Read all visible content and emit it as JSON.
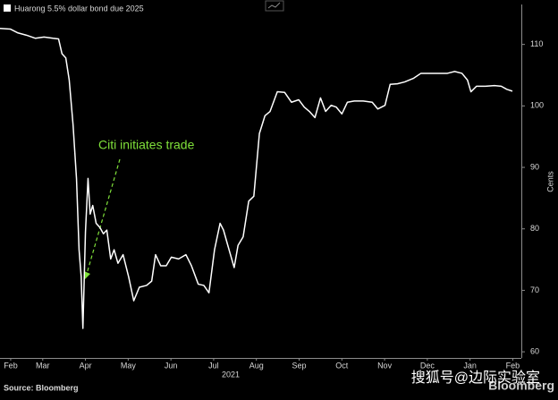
{
  "chart_data": {
    "type": "line",
    "series": [
      {
        "name": "Huarong 5.5% dollar bond due 2025",
        "color": "#ffffff",
        "x": [
          0,
          0.24,
          0.41,
          0.62,
          0.83,
          1.03,
          1.24,
          1.37,
          1.45,
          1.54,
          1.62,
          1.71,
          1.79,
          1.85,
          1.9,
          1.94,
          2.0,
          2.06,
          2.11,
          2.17,
          2.25,
          2.34,
          2.42,
          2.5,
          2.59,
          2.67,
          2.76,
          2.88,
          3.01,
          3.13,
          3.26,
          3.43,
          3.55,
          3.64,
          3.76,
          3.89,
          4.01,
          4.18,
          4.35,
          4.48,
          4.64,
          4.77,
          4.89,
          5.02,
          5.15,
          5.23,
          5.36,
          5.48,
          5.57,
          5.69,
          5.82,
          5.94,
          6.07,
          6.2,
          6.32,
          6.49,
          6.66,
          6.82,
          6.99,
          7.12,
          7.24,
          7.37,
          7.5,
          7.62,
          7.75,
          7.87,
          8.0,
          8.13,
          8.29,
          8.5,
          8.71,
          8.84,
          9.01,
          9.13,
          9.3,
          9.47,
          9.68,
          9.85,
          10.06,
          10.26,
          10.47,
          10.64,
          10.81,
          10.94,
          11.02,
          11.15,
          11.36,
          11.57,
          11.73,
          11.86,
          11.99
        ],
        "values": [
          112.6,
          112.5,
          111.9,
          111.5,
          111.0,
          111.2,
          111.0,
          110.9,
          108.5,
          107.8,
          104.2,
          96.9,
          88.2,
          76.6,
          72.2,
          63.8,
          79.5,
          88.2,
          82.4,
          83.8,
          80.9,
          80.2,
          79.2,
          79.8,
          75.1,
          76.6,
          74.4,
          75.8,
          72.2,
          68.3,
          70.5,
          70.8,
          71.5,
          75.8,
          74.0,
          74.0,
          75.4,
          75.1,
          75.8,
          74.0,
          71.0,
          70.8,
          69.6,
          76.6,
          80.9,
          79.8,
          76.6,
          73.7,
          77.3,
          78.7,
          84.5,
          85.3,
          95.5,
          98.4,
          99.1,
          102.3,
          102.2,
          100.6,
          101.0,
          99.8,
          99.1,
          98.1,
          101.3,
          99.1,
          100.1,
          99.8,
          98.7,
          100.6,
          100.8,
          100.8,
          100.6,
          99.5,
          100.1,
          103.5,
          103.6,
          103.9,
          104.5,
          105.3,
          105.3,
          105.3,
          105.3,
          105.6,
          105.3,
          104.2,
          102.3,
          103.2,
          103.2,
          103.3,
          103.2,
          102.7,
          102.4
        ]
      }
    ],
    "xlim": [
      0,
      12.2
    ],
    "xticks": [
      {
        "value": 0.25,
        "label": "Feb"
      },
      {
        "value": 1,
        "label": "Mar"
      },
      {
        "value": 2,
        "label": "Apr"
      },
      {
        "value": 3,
        "label": "May"
      },
      {
        "value": 4,
        "label": "Jun"
      },
      {
        "value": 5,
        "label": "Jul"
      },
      {
        "value": 6,
        "label": "Aug"
      },
      {
        "value": 7,
        "label": "Sep"
      },
      {
        "value": 8,
        "label": "Oct"
      },
      {
        "value": 9,
        "label": "Nov"
      },
      {
        "value": 10,
        "label": "Dec"
      },
      {
        "value": 11,
        "label": "Jan"
      },
      {
        "value": 12,
        "label": "Feb"
      }
    ],
    "year_label": "2021",
    "ylim": [
      59,
      116.5
    ],
    "yticks": [
      60,
      70,
      80,
      90,
      100,
      110
    ],
    "y_label": "Cents",
    "grid": false,
    "annotation": {
      "text": "Citi initiates trade",
      "color": "#7fe03a"
    },
    "source": "Source: Bloomberg",
    "brand": "Bloomberg",
    "watermark": "搜狐号@边际实验室"
  }
}
